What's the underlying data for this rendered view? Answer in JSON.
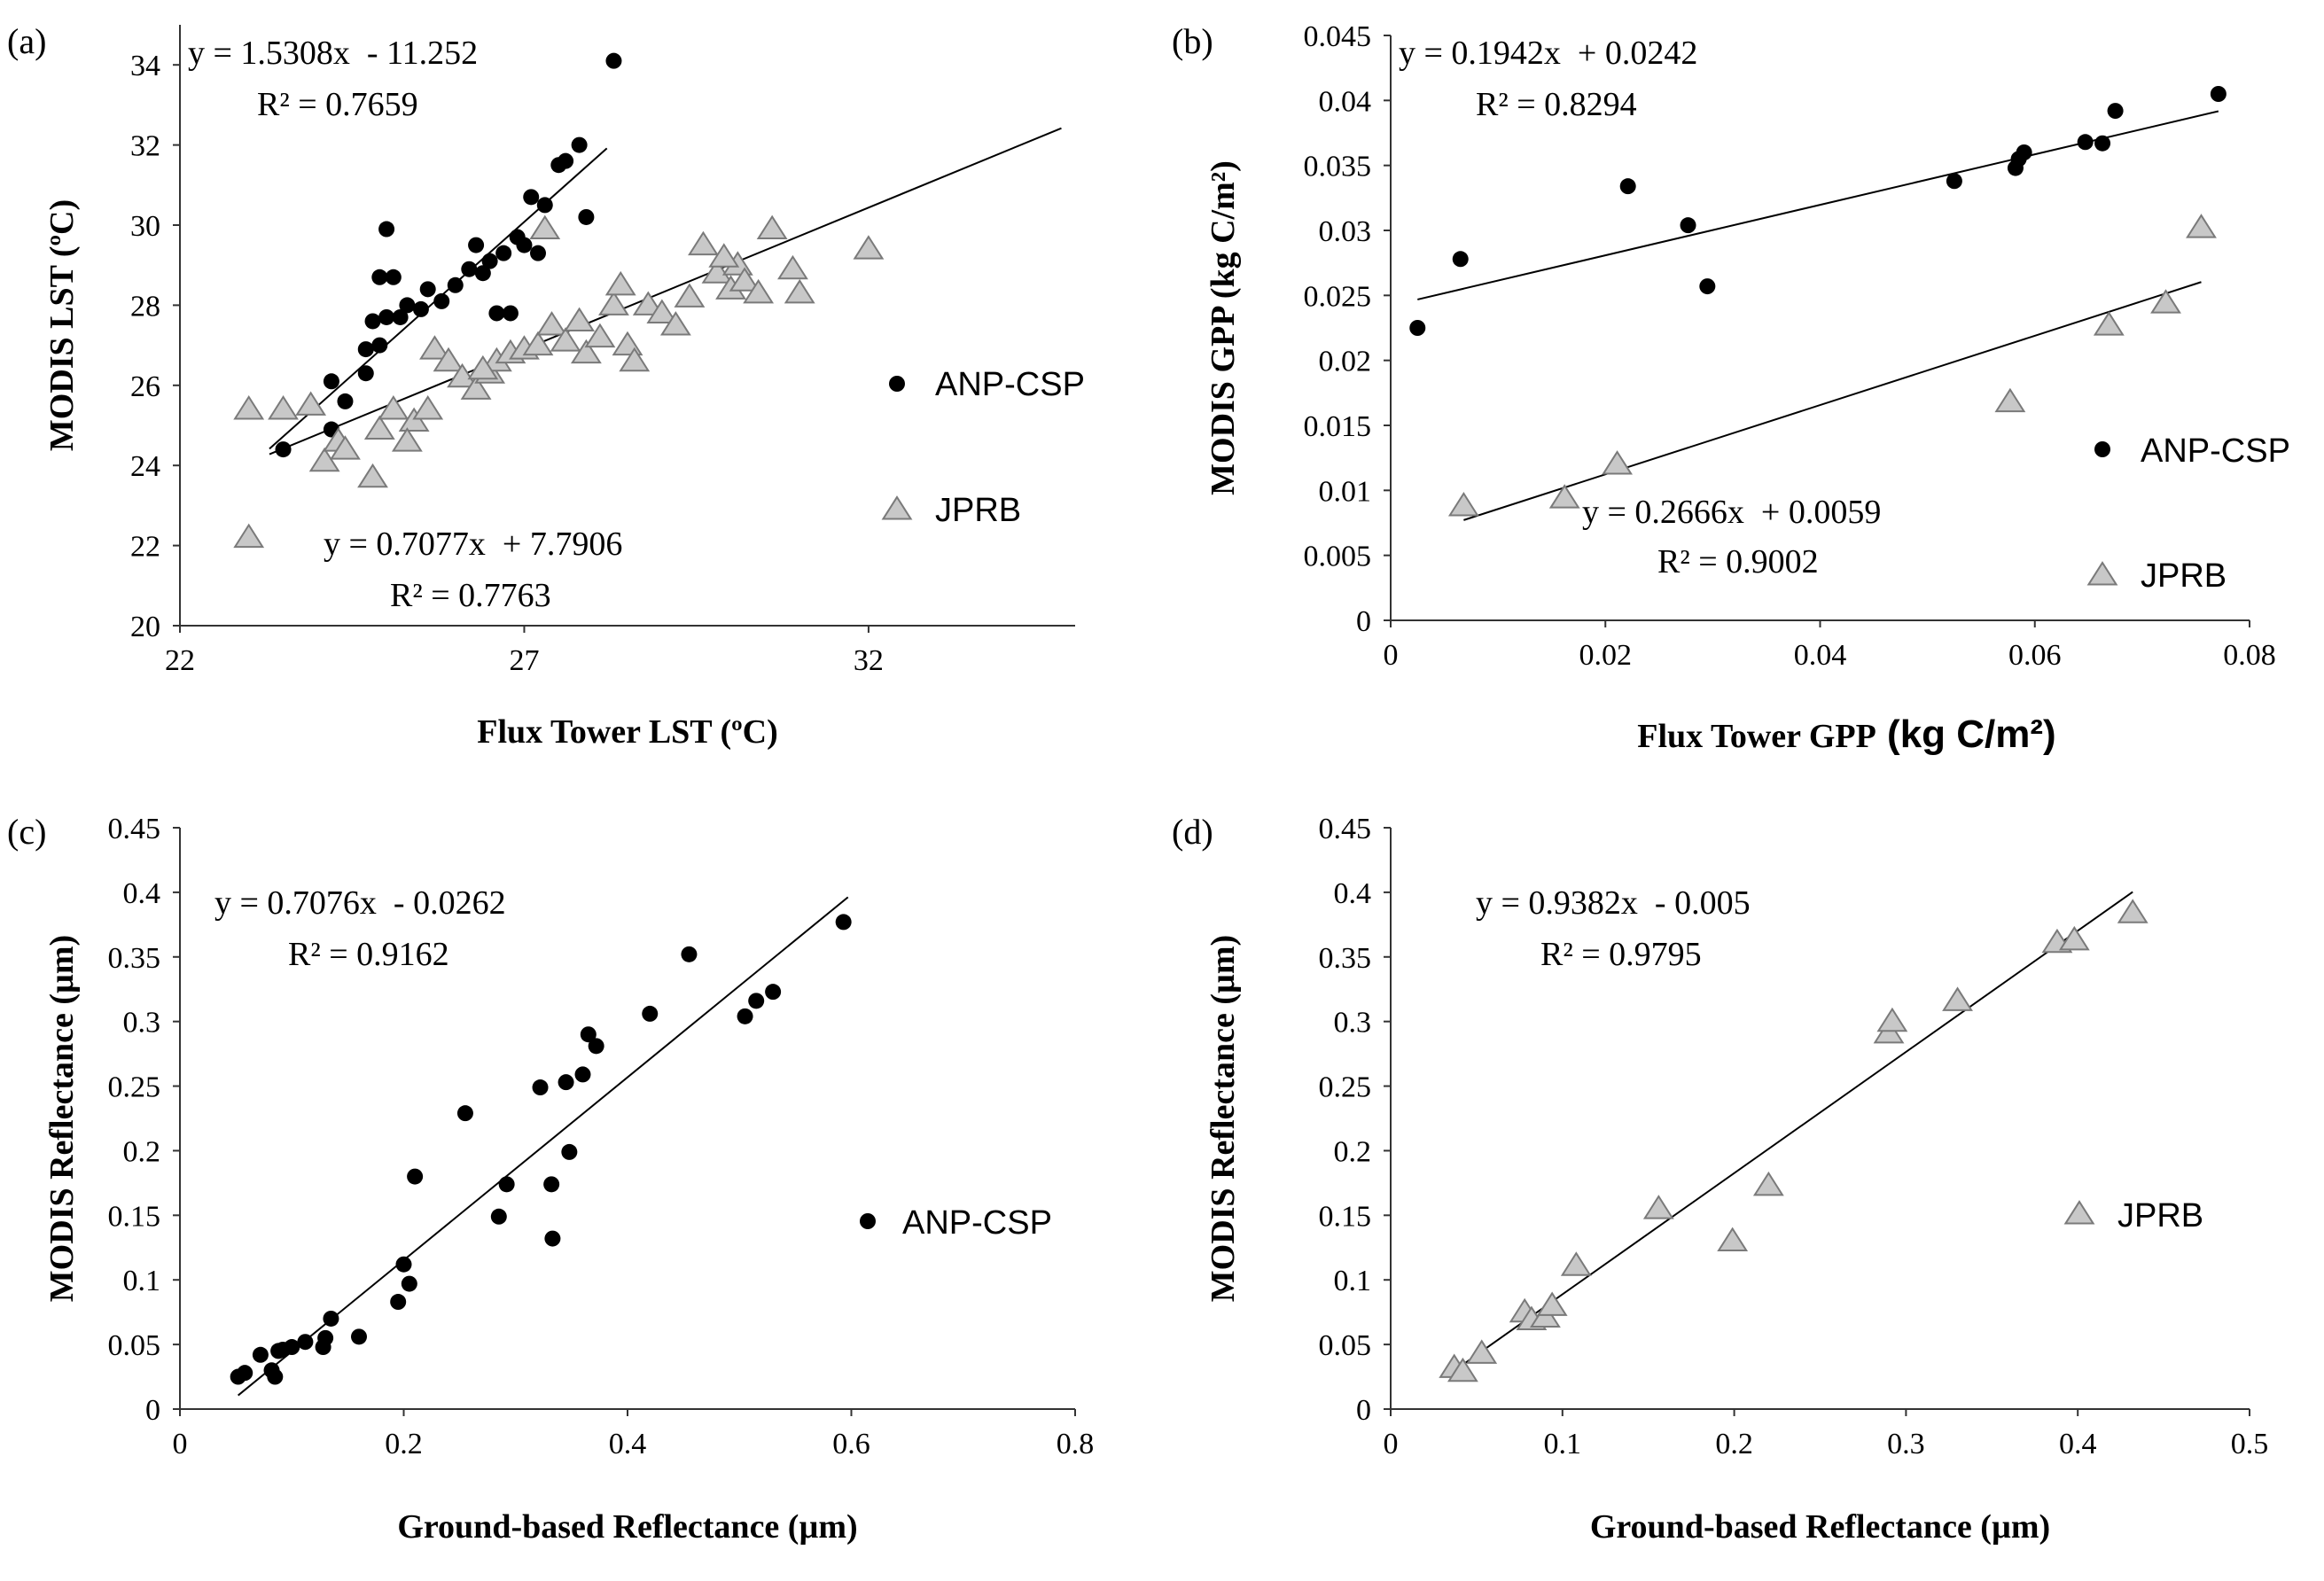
{
  "chart_data": [
    {
      "type": "scatter",
      "panel_label": "(a)",
      "xlabel": "Flux Tower LST (ºC)",
      "ylabel": "MODIS LST (ºC)",
      "xlim": [
        22,
        35
      ],
      "ylim": [
        20,
        35
      ],
      "xticks": [
        22,
        27,
        32
      ],
      "yticks": [
        20,
        22,
        24,
        26,
        28,
        30,
        32,
        34
      ],
      "legend_position": "right",
      "series": [
        {
          "name": "ANP-CSP",
          "marker": "circle",
          "points": [
            [
              23.5,
              24.4
            ],
            [
              24.2,
              26.1
            ],
            [
              24.2,
              24.9
            ],
            [
              24.4,
              25.6
            ],
            [
              24.7,
              26.3
            ],
            [
              24.7,
              26.9
            ],
            [
              24.8,
              27.6
            ],
            [
              24.9,
              27.0
            ],
            [
              24.9,
              28.7
            ],
            [
              25.0,
              27.7
            ],
            [
              25.2,
              27.7
            ],
            [
              25.0,
              29.9
            ],
            [
              25.1,
              28.7
            ],
            [
              25.3,
              28.0
            ],
            [
              25.5,
              27.9
            ],
            [
              25.6,
              28.4
            ],
            [
              25.8,
              28.1
            ],
            [
              26.0,
              28.5
            ],
            [
              26.2,
              28.9
            ],
            [
              26.3,
              29.5
            ],
            [
              26.4,
              28.8
            ],
            [
              26.5,
              29.1
            ],
            [
              26.6,
              27.8
            ],
            [
              26.7,
              29.3
            ],
            [
              26.9,
              29.7
            ],
            [
              27.0,
              29.5
            ],
            [
              27.1,
              30.7
            ],
            [
              27.3,
              30.5
            ],
            [
              27.5,
              31.5
            ],
            [
              27.6,
              31.6
            ],
            [
              27.8,
              32.0
            ],
            [
              27.9,
              30.2
            ],
            [
              28.3,
              34.1
            ],
            [
              26.8,
              27.8
            ],
            [
              27.2,
              29.3
            ]
          ]
        },
        {
          "name": "JPRB",
          "marker": "triangle",
          "points": [
            [
              23.0,
              25.4
            ],
            [
              23.5,
              25.4
            ],
            [
              23.0,
              22.2
            ],
            [
              23.9,
              25.5
            ],
            [
              24.1,
              24.1
            ],
            [
              24.3,
              24.6
            ],
            [
              24.4,
              24.4
            ],
            [
              24.9,
              24.9
            ],
            [
              24.8,
              23.7
            ],
            [
              25.1,
              25.4
            ],
            [
              25.4,
              25.1
            ],
            [
              25.3,
              24.6
            ],
            [
              25.6,
              25.4
            ],
            [
              25.7,
              26.9
            ],
            [
              25.9,
              26.6
            ],
            [
              26.1,
              26.2
            ],
            [
              26.3,
              25.9
            ],
            [
              26.5,
              26.3
            ],
            [
              26.6,
              26.6
            ],
            [
              26.8,
              26.8
            ],
            [
              27.0,
              26.9
            ],
            [
              27.2,
              27.0
            ],
            [
              27.4,
              27.5
            ],
            [
              27.6,
              27.1
            ],
            [
              27.8,
              27.6
            ],
            [
              27.9,
              26.8
            ],
            [
              28.1,
              27.2
            ],
            [
              28.3,
              28.0
            ],
            [
              28.5,
              27.0
            ],
            [
              28.6,
              26.6
            ],
            [
              28.8,
              28.0
            ],
            [
              29.0,
              27.8
            ],
            [
              29.2,
              27.5
            ],
            [
              29.4,
              28.2
            ],
            [
              29.6,
              29.5
            ],
            [
              29.8,
              28.8
            ],
            [
              30.0,
              28.4
            ],
            [
              30.1,
              29.0
            ],
            [
              30.2,
              28.6
            ],
            [
              30.4,
              28.3
            ],
            [
              30.6,
              29.9
            ],
            [
              30.9,
              28.9
            ],
            [
              31.0,
              28.3
            ],
            [
              32.0,
              29.4
            ],
            [
              27.3,
              29.9
            ],
            [
              28.4,
              28.5
            ],
            [
              29.9,
              29.2
            ],
            [
              26.4,
              26.4
            ]
          ]
        }
      ],
      "fits": [
        {
          "series": "ANP-CSP",
          "equation": "y = 1.5308x  - 11.252",
          "r2": "R² = 0.7659",
          "x_range": [
            23.3,
            28.2
          ],
          "slope": 1.5308,
          "intercept": -11.252
        },
        {
          "series": "JPRB",
          "equation": "y = 0.7077x  + 7.7906",
          "r2": "R² = 0.7763",
          "x_range": [
            23.3,
            34.8
          ],
          "slope": 0.7077,
          "intercept": 7.7906
        }
      ]
    },
    {
      "type": "scatter",
      "panel_label": "(b)",
      "xlabel": "Flux Tower  GPP",
      "xlabel_unit": "(kg C/m²)",
      "ylabel": "MODIS GPP (kg C/m²)",
      "xlim": [
        0,
        0.08
      ],
      "ylim": [
        0,
        0.045
      ],
      "xticks": [
        0,
        0.02,
        0.04,
        0.06,
        0.08
      ],
      "yticks": [
        0,
        0.005,
        0.01,
        0.015,
        0.02,
        0.025,
        0.03,
        0.035,
        0.04,
        0.045
      ],
      "legend_position": "right",
      "series": [
        {
          "name": "ANP-CSP",
          "marker": "circle",
          "points": [
            [
              0.0025,
              0.0225
            ],
            [
              0.0065,
              0.0278
            ],
            [
              0.0221,
              0.0334
            ],
            [
              0.0277,
              0.0304
            ],
            [
              0.0295,
              0.0257
            ],
            [
              0.0525,
              0.0338
            ],
            [
              0.0582,
              0.0348
            ],
            [
              0.0585,
              0.0355
            ],
            [
              0.059,
              0.036
            ],
            [
              0.0647,
              0.0368
            ],
            [
              0.0663,
              0.0367
            ],
            [
              0.0675,
              0.0392
            ],
            [
              0.0771,
              0.0405
            ]
          ]
        },
        {
          "name": "JPRB",
          "marker": "triangle",
          "points": [
            [
              0.0068,
              0.0088
            ],
            [
              0.0162,
              0.0094
            ],
            [
              0.0211,
              0.012
            ],
            [
              0.0577,
              0.0168
            ],
            [
              0.0669,
              0.0227
            ],
            [
              0.0722,
              0.0244
            ],
            [
              0.0755,
              0.0302
            ]
          ]
        }
      ],
      "fits": [
        {
          "series": "ANP-CSP",
          "equation": "y = 0.1942x  + 0.0242",
          "r2": "R² = 0.8294",
          "x_range": [
            0.0025,
            0.0771
          ],
          "slope": 0.1942,
          "intercept": 0.0242
        },
        {
          "series": "JPRB",
          "equation": "y = 0.2666x  + 0.0059",
          "r2": "R² = 0.9002",
          "x_range": [
            0.0068,
            0.0755
          ],
          "slope": 0.2666,
          "intercept": 0.0059
        }
      ]
    },
    {
      "type": "scatter",
      "panel_label": "(c)",
      "xlabel": "Ground-based Reflectance (µm)",
      "ylabel": "MODIS Reflectance (µm)",
      "xlim": [
        0,
        0.8
      ],
      "ylim": [
        0,
        0.45
      ],
      "xticks": [
        0,
        0.2,
        0.4,
        0.6,
        0.8
      ],
      "yticks": [
        0,
        0.05,
        0.1,
        0.15,
        0.2,
        0.25,
        0.3,
        0.35,
        0.4,
        0.45
      ],
      "legend_position": "right",
      "series": [
        {
          "name": "ANP-CSP",
          "marker": "circle",
          "points": [
            [
              0.052,
              0.025
            ],
            [
              0.058,
              0.028
            ],
            [
              0.072,
              0.042
            ],
            [
              0.082,
              0.03
            ],
            [
              0.085,
              0.025
            ],
            [
              0.088,
              0.045
            ],
            [
              0.092,
              0.046
            ],
            [
              0.1,
              0.048
            ],
            [
              0.112,
              0.052
            ],
            [
              0.128,
              0.048
            ],
            [
              0.13,
              0.055
            ],
            [
              0.135,
              0.07
            ],
            [
              0.16,
              0.056
            ],
            [
              0.195,
              0.083
            ],
            [
              0.2,
              0.112
            ],
            [
              0.205,
              0.097
            ],
            [
              0.21,
              0.18
            ],
            [
              0.255,
              0.229
            ],
            [
              0.285,
              0.149
            ],
            [
              0.292,
              0.174
            ],
            [
              0.322,
              0.249
            ],
            [
              0.332,
              0.174
            ],
            [
              0.333,
              0.132
            ],
            [
              0.345,
              0.253
            ],
            [
              0.348,
              0.199
            ],
            [
              0.36,
              0.259
            ],
            [
              0.365,
              0.29
            ],
            [
              0.372,
              0.281
            ],
            [
              0.42,
              0.306
            ],
            [
              0.455,
              0.352
            ],
            [
              0.505,
              0.304
            ],
            [
              0.515,
              0.316
            ],
            [
              0.53,
              0.323
            ],
            [
              0.593,
              0.377
            ]
          ]
        }
      ],
      "fits": [
        {
          "series": "ANP-CSP",
          "equation": "y = 0.7076x  - 0.0262",
          "r2": "R² = 0.9162",
          "x_range": [
            0.052,
            0.597
          ],
          "slope": 0.7076,
          "intercept": -0.0262
        }
      ]
    },
    {
      "type": "scatter",
      "panel_label": "(d)",
      "xlabel": "Ground-based Reflectance (µm)",
      "ylabel": "MODIS Reflectance (µm)",
      "xlim": [
        0,
        0.5
      ],
      "ylim": [
        0,
        0.45
      ],
      "xticks": [
        0,
        0.1,
        0.2,
        0.3,
        0.4,
        0.5
      ],
      "yticks": [
        0,
        0.05,
        0.1,
        0.15,
        0.2,
        0.25,
        0.3,
        0.35,
        0.4,
        0.45
      ],
      "legend_position": "right",
      "series": [
        {
          "name": "JPRB",
          "marker": "triangle",
          "points": [
            [
              0.037,
              0.032
            ],
            [
              0.042,
              0.029
            ],
            [
              0.053,
              0.043
            ],
            [
              0.078,
              0.075
            ],
            [
              0.082,
              0.069
            ],
            [
              0.09,
              0.071
            ],
            [
              0.094,
              0.08
            ],
            [
              0.108,
              0.111
            ],
            [
              0.156,
              0.155
            ],
            [
              0.199,
              0.13
            ],
            [
              0.22,
              0.173
            ],
            [
              0.29,
              0.291
            ],
            [
              0.292,
              0.3
            ],
            [
              0.33,
              0.316
            ],
            [
              0.388,
              0.361
            ],
            [
              0.398,
              0.363
            ],
            [
              0.432,
              0.384
            ]
          ]
        }
      ],
      "fits": [
        {
          "series": "JPRB",
          "equation": "y = 0.9382x  - 0.005",
          "r2": "R² = 0.9795",
          "x_range": [
            0.037,
            0.432
          ],
          "slope": 0.9382,
          "intercept": -0.005
        }
      ]
    }
  ]
}
